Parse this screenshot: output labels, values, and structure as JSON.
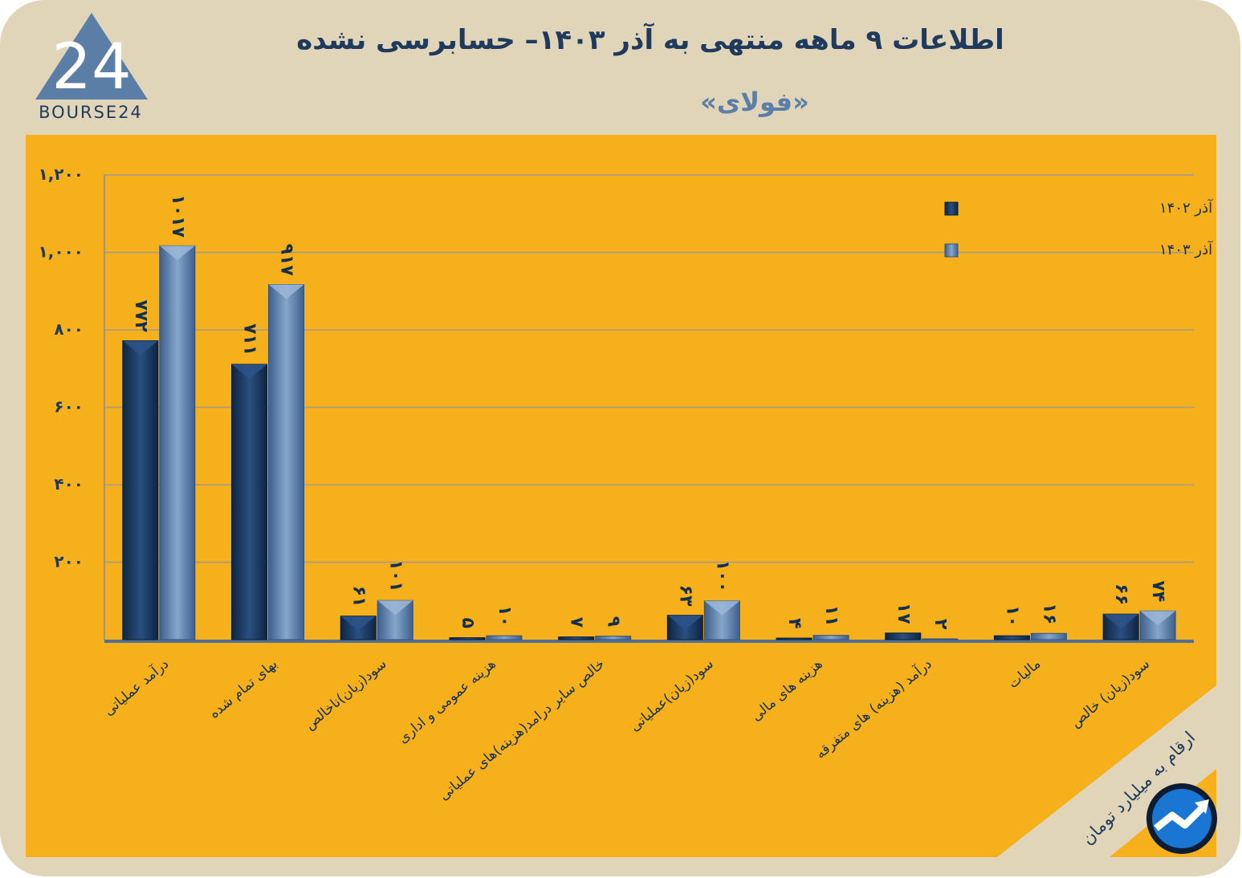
{
  "header": {
    "title": "اطلاعات ۹ ماهه منتهی به آذر  ۱۴۰۳– حسابرسی نشده",
    "subtitle": "«فولای»",
    "logo_text": "BOURSE24",
    "logo_mark": "24"
  },
  "units_note": "ارقام به میلیارد تومان",
  "colors": {
    "background": "#e0d5b8",
    "panel": "#f6b01c",
    "series_1402": "#1d3b63",
    "series_1403": "#5b7fa8",
    "text": "#1f3a5c"
  },
  "icons": {
    "badge": "trend-up-arrow-icon"
  },
  "chart_data": {
    "type": "bar",
    "categories": [
      "درآمد عملیاتی",
      "بهای تمام شده",
      "سود(زیان)ناخالص",
      "هزینه عمومی و اداری",
      "خالص سایر درامد(هزینه)های عملیاتی",
      "سود(زیان)عملیاتی",
      "هزینه های مالی",
      "درآمد (هزینه) های متفرقه",
      "مالیات",
      "سود(زیان) خالص"
    ],
    "series": [
      {
        "name": "عملکرد منتهی به آذر ۱۴۰۲",
        "values": [
          772,
          711,
          61,
          5,
          7,
          63,
          4,
          17,
          10,
          66
        ],
        "labels": [
          "۷۷۲",
          "۷۱۱",
          "۶۱",
          "۵",
          "۷",
          "۶۳",
          "۴",
          "۱۷",
          "۱۰",
          "۶۶"
        ]
      },
      {
        "name": "عملکرد منتهی به آذر ۱۴۰۳",
        "values": [
          1017,
          917,
          101,
          10,
          9,
          100,
          11,
          2,
          16,
          74
        ],
        "labels": [
          "۱۰۱۷",
          "۹۱۷",
          "۱۰۱",
          "۱۰",
          "۹",
          "۱۰۰",
          "۱۱",
          "۲",
          "۱۶",
          "۷۴"
        ]
      }
    ],
    "ylim": [
      0,
      1200
    ],
    "yticks": [
      200,
      400,
      600,
      800,
      1000,
      1200
    ],
    "ytick_labels": [
      "۲۰۰",
      "۴۰۰",
      "۶۰۰",
      "۸۰۰",
      "۱,۰۰۰",
      "۱,۲۰۰"
    ],
    "grid": true,
    "legend": "top-right"
  }
}
